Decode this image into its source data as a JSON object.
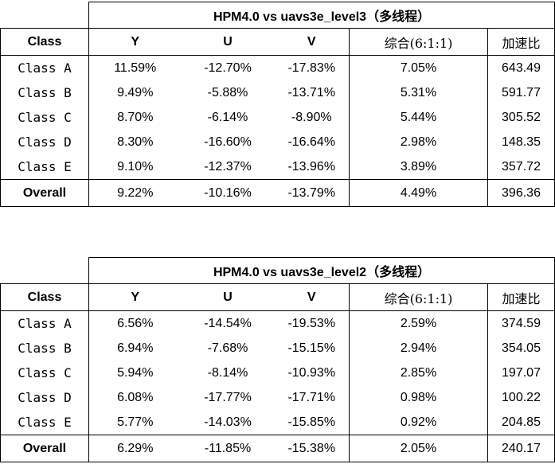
{
  "tables": [
    {
      "title": "HPM4.0 vs uavs3e_level3（多线程）",
      "headers": {
        "class": "Class",
        "y": "Y",
        "u": "U",
        "v": "V",
        "combined": "综合(6:1:1)",
        "speedup": "加速比"
      },
      "rows": [
        {
          "cls": "Class A",
          "y": "11.59%",
          "u": "-12.70%",
          "v": "-17.83%",
          "combined": "7.05%",
          "speedup": "643.49"
        },
        {
          "cls": "Class B",
          "y": "9.49%",
          "u": "-5.88%",
          "v": "-13.71%",
          "combined": "5.31%",
          "speedup": "591.77"
        },
        {
          "cls": "Class C",
          "y": "8.70%",
          "u": "-6.14%",
          "v": "-8.90%",
          "combined": "5.44%",
          "speedup": "305.52"
        },
        {
          "cls": "Class D",
          "y": "8.30%",
          "u": "-16.60%",
          "v": "-16.64%",
          "combined": "2.98%",
          "speedup": "148.35"
        },
        {
          "cls": "Class E",
          "y": "9.10%",
          "u": "-12.37%",
          "v": "-13.96%",
          "combined": "3.89%",
          "speedup": "357.72"
        }
      ],
      "overall": {
        "cls": "Overall",
        "y": "9.22%",
        "u": "-10.16%",
        "v": "-13.79%",
        "combined": "4.49%",
        "speedup": "396.36"
      }
    },
    {
      "title": "HPM4.0 vs uavs3e_level2（多线程）",
      "headers": {
        "class": "Class",
        "y": "Y",
        "u": "U",
        "v": "V",
        "combined": "综合(6:1:1)",
        "speedup": "加速比"
      },
      "rows": [
        {
          "cls": "Class A",
          "y": "6.56%",
          "u": "-14.54%",
          "v": "-19.53%",
          "combined": "2.59%",
          "speedup": "374.59"
        },
        {
          "cls": "Class B",
          "y": "6.94%",
          "u": "-7.68%",
          "v": "-15.15%",
          "combined": "2.94%",
          "speedup": "354.05"
        },
        {
          "cls": "Class C",
          "y": "5.94%",
          "u": "-8.14%",
          "v": "-10.93%",
          "combined": "2.85%",
          "speedup": "197.07"
        },
        {
          "cls": "Class D",
          "y": "6.08%",
          "u": "-17.77%",
          "v": "-17.71%",
          "combined": "0.98%",
          "speedup": "100.22"
        },
        {
          "cls": "Class E",
          "y": "5.77%",
          "u": "-14.03%",
          "v": "-15.85%",
          "combined": "0.92%",
          "speedup": "204.85"
        }
      ],
      "overall": {
        "cls": "Overall",
        "y": "6.29%",
        "u": "-11.85%",
        "v": "-15.38%",
        "combined": "2.05%",
        "speedup": "240.17"
      }
    }
  ]
}
